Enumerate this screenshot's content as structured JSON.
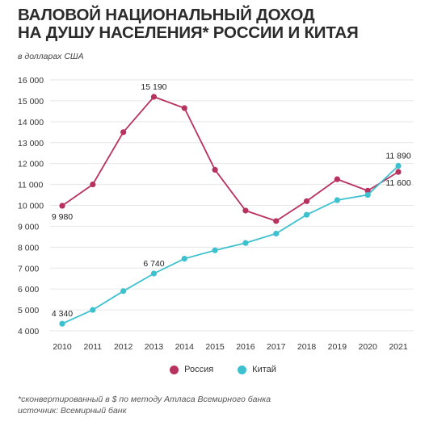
{
  "title_line1": "ВАЛОВОЙ НАЦИОНАЛЬНЫЙ ДОХОД",
  "title_line2": "НА ДУШУ НАСЕЛЕНИЯ* РОССИИ И КИТАЯ",
  "unit_label": "в долларах США",
  "footnote_line1": "*сконвертированный в $ по методу Атласа Всемирного банка",
  "footnote_line2": "источник: Всемирный банк",
  "legend": [
    {
      "label": "Россия",
      "color": "#b8325f"
    },
    {
      "label": "Китай",
      "color": "#3ec1cf"
    }
  ],
  "chart_data": {
    "type": "line",
    "x": [
      2010,
      2011,
      2012,
      2013,
      2014,
      2015,
      2016,
      2017,
      2018,
      2019,
      2020,
      2021
    ],
    "ylim": [
      4000,
      16000
    ],
    "yticks": [
      "4 000",
      "5 000",
      "6 000",
      "7 000",
      "8 000",
      "9 000",
      "10 000",
      "11 000",
      "12 000",
      "13 000",
      "14 000",
      "15 000",
      "16 000"
    ],
    "grid": "horizontal",
    "legend_position": "bottom",
    "series": [
      {
        "name": "Россия",
        "color": "#b8325f",
        "values": [
          9980,
          11000,
          13500,
          15190,
          14650,
          11700,
          9750,
          9250,
          10200,
          11250,
          10700,
          11600
        ]
      },
      {
        "name": "Китай",
        "color": "#3ec1cf",
        "values": [
          4340,
          5000,
          5900,
          6740,
          7450,
          7850,
          8200,
          8650,
          9550,
          10250,
          10500,
          11890
        ]
      }
    ],
    "annotations": [
      {
        "series": 0,
        "index": 0,
        "text": "9 980",
        "place": "below"
      },
      {
        "series": 0,
        "index": 3,
        "text": "15 190",
        "place": "above"
      },
      {
        "series": 0,
        "index": 11,
        "text": "11 600",
        "place": "below"
      },
      {
        "series": 1,
        "index": 0,
        "text": "4 340",
        "place": "above"
      },
      {
        "series": 1,
        "index": 3,
        "text": "6 740",
        "place": "above"
      },
      {
        "series": 1,
        "index": 11,
        "text": "11 890",
        "place": "above"
      }
    ]
  }
}
